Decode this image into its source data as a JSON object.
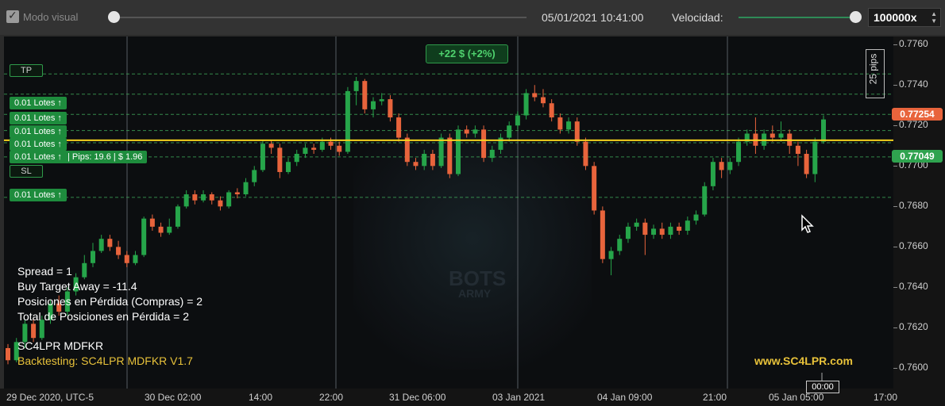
{
  "toolbar": {
    "visual_mode_label": "Modo visual",
    "visual_mode_checked": true,
    "datetime": "05/01/2021 10:41:00",
    "speed_label": "Velocidad:",
    "speed_value": "100000x"
  },
  "overlay": {
    "profit": "+22 $ (+2%)",
    "pips_label": "25 pips",
    "tp_label": "TP",
    "sl_label": "SL",
    "lot_label": "0.01 Lotes ↑",
    "pips_detail": "Pips: 19.6",
    "money_detail": "$ 1.96",
    "price_red": "0.77254",
    "price_green": "0.77049"
  },
  "info": {
    "spread": "Spread = 1",
    "buy_target": "Buy Target Away = -11.4",
    "posiciones": "Posiciones en Pérdida (Compras) = 2",
    "total": "Total de Posiciones en Pérdida = 2",
    "name": "SC4LPR MDFKR",
    "backtesting": "Backtesting: SC4LPR MDFKR V1.7",
    "website": "www.SC4LPR.com"
  },
  "cursor_time": "00:00",
  "colors": {
    "up": "#26a54a",
    "down": "#e8643c",
    "current_line": "#f5d21e",
    "tp_sl_line": "#3fa85a"
  },
  "chart_data": {
    "type": "candlestick",
    "y_ticks": [
      "0.7760",
      "0.7740",
      "0.7720",
      "0.7700",
      "0.7680",
      "0.7660",
      "0.7640",
      "0.7620",
      "0.7600"
    ],
    "x_ticks": [
      "29 Dec 2020, UTC-5",
      "30 Dec 02:00",
      "14:00",
      "22:00",
      "31 Dec 06:00",
      "03 Jan 2021",
      "04 Jan 09:00",
      "21:00",
      "05 Jan 05:00",
      "17:00"
    ],
    "ylim": [
      0.759,
      0.7764
    ],
    "current_price": 0.77127,
    "levels": [
      0.77455,
      0.77355,
      0.77255,
      0.77175,
      0.77115,
      0.77045,
      0.76845
    ],
    "candles": [
      [
        0.761,
        0.7604,
        0.7612,
        0.7602
      ],
      [
        0.7604,
        0.7613,
        0.7615,
        0.7603
      ],
      [
        0.7613,
        0.7622,
        0.7624,
        0.761
      ],
      [
        0.7622,
        0.7615,
        0.7625,
        0.7613
      ],
      [
        0.7615,
        0.7624,
        0.7626,
        0.7614
      ],
      [
        0.7624,
        0.7632,
        0.7634,
        0.7622
      ],
      [
        0.7632,
        0.7628,
        0.7636,
        0.7626
      ],
      [
        0.7628,
        0.7638,
        0.764,
        0.7626
      ],
      [
        0.7638,
        0.7645,
        0.7647,
        0.7636
      ],
      [
        0.7645,
        0.7652,
        0.7656,
        0.7644
      ],
      [
        0.7652,
        0.7658,
        0.7662,
        0.765
      ],
      [
        0.7658,
        0.7664,
        0.7666,
        0.7657
      ],
      [
        0.7664,
        0.766,
        0.7666,
        0.7658
      ],
      [
        0.766,
        0.7656,
        0.7663,
        0.7654
      ],
      [
        0.7656,
        0.7652,
        0.7658,
        0.765
      ],
      [
        0.7652,
        0.7656,
        0.7658,
        0.7651
      ],
      [
        0.7656,
        0.7674,
        0.7675,
        0.7655
      ],
      [
        0.7674,
        0.767,
        0.7676,
        0.7668
      ],
      [
        0.767,
        0.7667,
        0.7672,
        0.7665
      ],
      [
        0.7667,
        0.767,
        0.7674,
        0.7666
      ],
      [
        0.767,
        0.768,
        0.7681,
        0.7669
      ],
      [
        0.768,
        0.7686,
        0.7688,
        0.7679
      ],
      [
        0.7686,
        0.7683,
        0.7688,
        0.7681
      ],
      [
        0.7683,
        0.7686,
        0.7688,
        0.7682
      ],
      [
        0.7686,
        0.7683,
        0.7687,
        0.7681
      ],
      [
        0.7683,
        0.768,
        0.7685,
        0.7678
      ],
      [
        0.768,
        0.7687,
        0.7688,
        0.7679
      ],
      [
        0.7687,
        0.7686,
        0.7689,
        0.7684
      ],
      [
        0.7686,
        0.7692,
        0.7694,
        0.7685
      ],
      [
        0.7692,
        0.7698,
        0.77,
        0.769
      ],
      [
        0.7698,
        0.7711,
        0.7713,
        0.7697
      ],
      [
        0.7711,
        0.7709,
        0.7713,
        0.7706
      ],
      [
        0.7709,
        0.7697,
        0.7711,
        0.7694
      ],
      [
        0.7697,
        0.7702,
        0.7704,
        0.7696
      ],
      [
        0.7702,
        0.7706,
        0.7708,
        0.77
      ],
      [
        0.7706,
        0.7709,
        0.7711,
        0.7704
      ],
      [
        0.7709,
        0.7708,
        0.7711,
        0.7706
      ],
      [
        0.7708,
        0.7712,
        0.7714,
        0.7707
      ],
      [
        0.7712,
        0.771,
        0.7714,
        0.7708
      ],
      [
        0.771,
        0.7707,
        0.7712,
        0.7705
      ],
      [
        0.7707,
        0.7737,
        0.7739,
        0.7706
      ],
      [
        0.7737,
        0.7742,
        0.7744,
        0.773
      ],
      [
        0.7742,
        0.7728,
        0.7743,
        0.7726
      ],
      [
        0.7728,
        0.7732,
        0.7734,
        0.7724
      ],
      [
        0.7732,
        0.7733,
        0.7736,
        0.773
      ],
      [
        0.7733,
        0.7724,
        0.7735,
        0.7722
      ],
      [
        0.7724,
        0.7714,
        0.7726,
        0.7712
      ],
      [
        0.7714,
        0.7702,
        0.7716,
        0.77
      ],
      [
        0.7702,
        0.77,
        0.7704,
        0.7698
      ],
      [
        0.77,
        0.7706,
        0.7708,
        0.7698
      ],
      [
        0.7706,
        0.77,
        0.7708,
        0.7698
      ],
      [
        0.77,
        0.7714,
        0.7716,
        0.7699
      ],
      [
        0.7714,
        0.7696,
        0.7716,
        0.7694
      ],
      [
        0.7696,
        0.7718,
        0.772,
        0.7695
      ],
      [
        0.7718,
        0.7716,
        0.772,
        0.7714
      ],
      [
        0.7716,
        0.7718,
        0.772,
        0.7714
      ],
      [
        0.7718,
        0.7704,
        0.772,
        0.7702
      ],
      [
        0.7704,
        0.7708,
        0.771,
        0.7702
      ],
      [
        0.7708,
        0.7714,
        0.7716,
        0.7706
      ],
      [
        0.7714,
        0.772,
        0.7722,
        0.7712
      ],
      [
        0.772,
        0.7725,
        0.7727,
        0.7718
      ],
      [
        0.7725,
        0.7736,
        0.7738,
        0.7723
      ],
      [
        0.7736,
        0.7734,
        0.774,
        0.7732
      ],
      [
        0.7734,
        0.7731,
        0.7738,
        0.7729
      ],
      [
        0.7731,
        0.7724,
        0.7733,
        0.7722
      ],
      [
        0.7724,
        0.7718,
        0.7726,
        0.7716
      ],
      [
        0.7718,
        0.7722,
        0.7724,
        0.7716
      ],
      [
        0.7722,
        0.7712,
        0.7724,
        0.771
      ],
      [
        0.7712,
        0.77,
        0.7714,
        0.7698
      ],
      [
        0.77,
        0.7678,
        0.7702,
        0.7676
      ],
      [
        0.7678,
        0.7654,
        0.768,
        0.7652
      ],
      [
        0.7654,
        0.7658,
        0.766,
        0.7646
      ],
      [
        0.7658,
        0.7664,
        0.7666,
        0.7656
      ],
      [
        0.7664,
        0.767,
        0.7672,
        0.7662
      ],
      [
        0.767,
        0.7672,
        0.7674,
        0.7668
      ],
      [
        0.7672,
        0.7666,
        0.7674,
        0.7656
      ],
      [
        0.7666,
        0.7669,
        0.7671,
        0.7664
      ],
      [
        0.7669,
        0.7666,
        0.7672,
        0.7664
      ],
      [
        0.7666,
        0.767,
        0.7672,
        0.7664
      ],
      [
        0.767,
        0.7668,
        0.7672,
        0.7666
      ],
      [
        0.7668,
        0.7673,
        0.7675,
        0.7666
      ],
      [
        0.7673,
        0.7676,
        0.7678,
        0.7671
      ],
      [
        0.7676,
        0.769,
        0.7692,
        0.7675
      ],
      [
        0.769,
        0.7702,
        0.7704,
        0.7688
      ],
      [
        0.7702,
        0.7698,
        0.7704,
        0.7694
      ],
      [
        0.7698,
        0.7702,
        0.7704,
        0.7696
      ],
      [
        0.7702,
        0.7712,
        0.7714,
        0.77
      ],
      [
        0.7712,
        0.7716,
        0.7718,
        0.771
      ],
      [
        0.7716,
        0.771,
        0.7724,
        0.7706
      ],
      [
        0.771,
        0.7716,
        0.7718,
        0.7708
      ],
      [
        0.7716,
        0.7714,
        0.772,
        0.7712
      ],
      [
        0.7714,
        0.7716,
        0.7722,
        0.7712
      ],
      [
        0.7716,
        0.771,
        0.7718,
        0.7706
      ],
      [
        0.771,
        0.7706,
        0.7712,
        0.77
      ],
      [
        0.7706,
        0.7696,
        0.7708,
        0.7694
      ],
      [
        0.7696,
        0.7712,
        0.7714,
        0.7692
      ],
      [
        0.7712,
        0.7723,
        0.7725,
        0.7711
      ]
    ]
  }
}
